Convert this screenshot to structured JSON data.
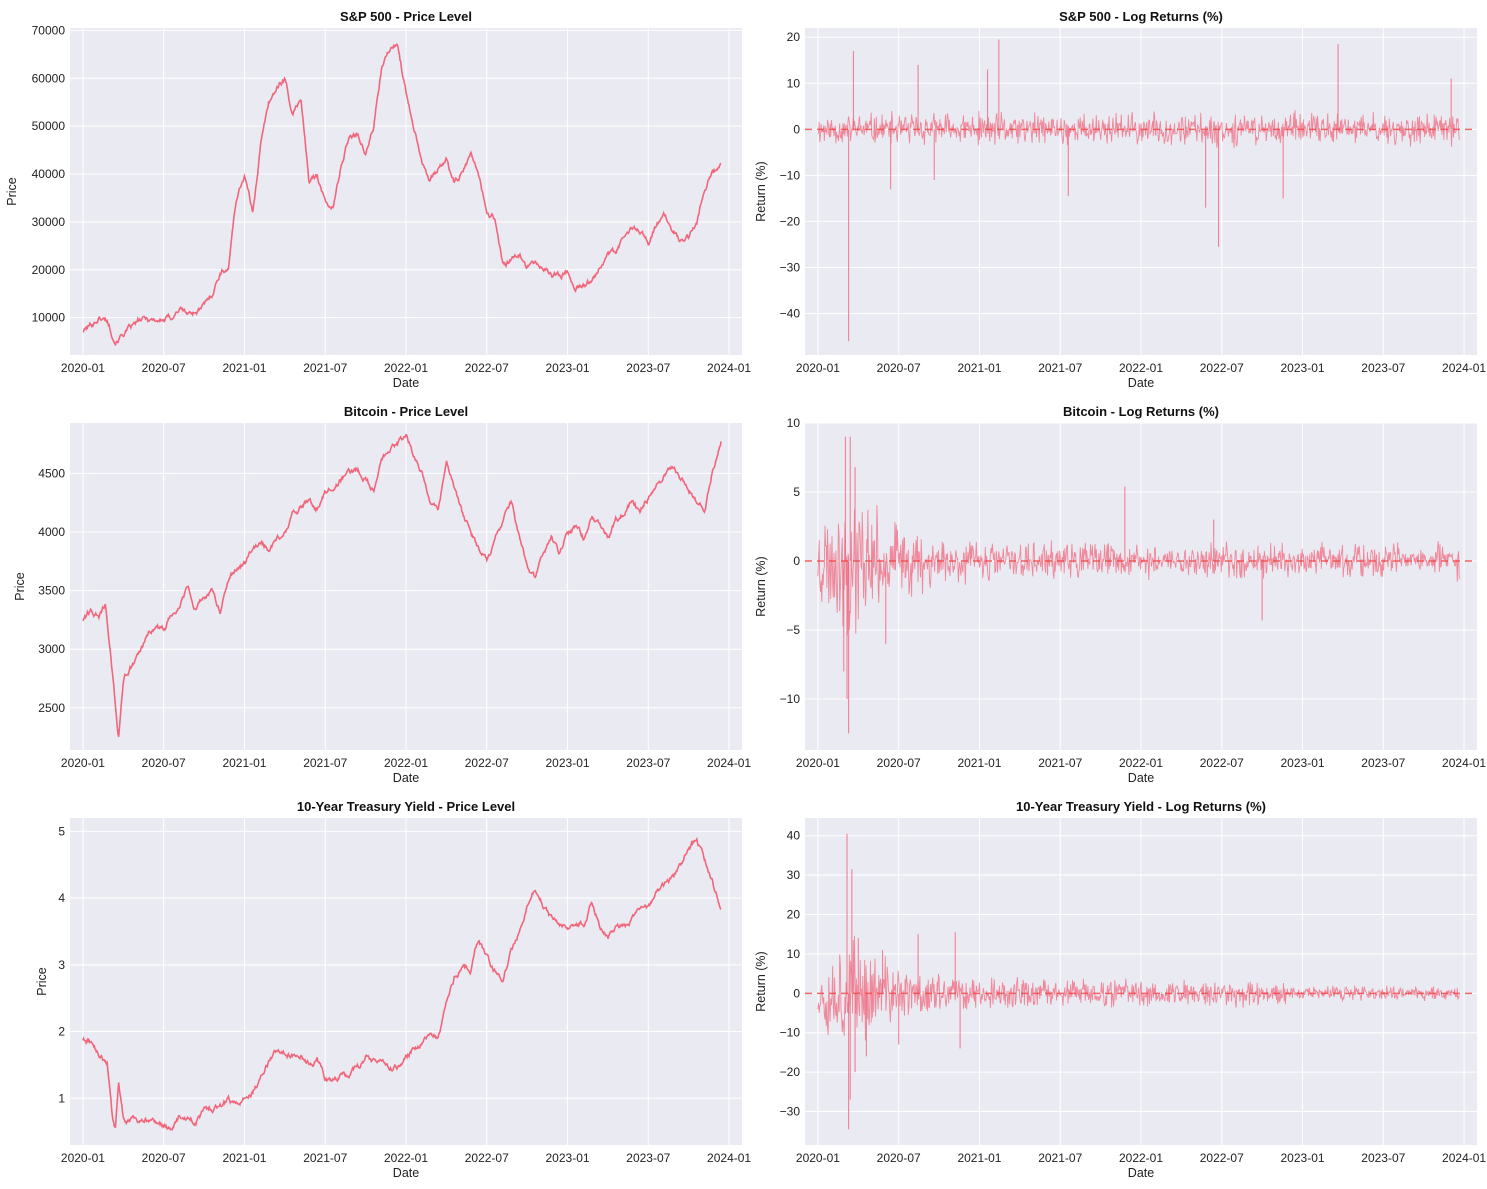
{
  "colors": {
    "line": "#f0677c",
    "zero_line": "#ef4444",
    "panel_bg": "#eaeaf2"
  },
  "chart_data": [
    {
      "id": "sp500-price",
      "type": "line",
      "title": "S&P 500 - Price Level",
      "xlabel": "Date",
      "ylabel": "Price",
      "xlim": [
        2019.92,
        2024.08
      ],
      "ylim": [
        2200,
        70500
      ],
      "yticks": [
        10000,
        20000,
        30000,
        40000,
        50000,
        60000,
        70000
      ],
      "ytick_labels": [
        "10000",
        "20000",
        "30000",
        "40000",
        "50000",
        "60000",
        "70000"
      ],
      "xticks": [
        2020.0,
        2020.5,
        2021.0,
        2021.5,
        2022.0,
        2022.5,
        2023.0,
        2023.5,
        2024.0
      ],
      "xtick_labels": [
        "2020-01",
        "2020-07",
        "2021-01",
        "2021-07",
        "2022-01",
        "2022-07",
        "2023-01",
        "2023-07",
        "2024-01"
      ],
      "series": [
        {
          "name": "S&P 500",
          "x": [
            2020.0,
            2020.05,
            2020.1,
            2020.15,
            2020.2,
            2020.25,
            2020.3,
            2020.35,
            2020.4,
            2020.45,
            2020.5,
            2020.55,
            2020.6,
            2020.65,
            2020.7,
            2020.75,
            2020.8,
            2020.85,
            2020.9,
            2020.95,
            2021.0,
            2021.05,
            2021.1,
            2021.15,
            2021.2,
            2021.25,
            2021.3,
            2021.35,
            2021.4,
            2021.45,
            2021.5,
            2021.55,
            2021.6,
            2021.65,
            2021.7,
            2021.75,
            2021.8,
            2021.85,
            2021.9,
            2021.95,
            2022.0,
            2022.05,
            2022.1,
            2022.15,
            2022.2,
            2022.25,
            2022.3,
            2022.35,
            2022.4,
            2022.45,
            2022.5,
            2022.55,
            2022.6,
            2022.65,
            2022.7,
            2022.75,
            2022.8,
            2022.85,
            2022.9,
            2022.95,
            2023.0,
            2023.05,
            2023.1,
            2023.15,
            2023.2,
            2023.25,
            2023.3,
            2023.35,
            2023.4,
            2023.45,
            2023.5,
            2023.55,
            2023.6,
            2023.65,
            2023.7,
            2023.75,
            2023.8,
            2023.85,
            2023.9,
            2023.95
          ],
          "y": [
            7200,
            8500,
            10000,
            9500,
            5300,
            6800,
            7800,
            9200,
            9700,
            9600,
            9500,
            10100,
            12000,
            10800,
            11300,
            12300,
            15000,
            19500,
            20500,
            35000,
            40000,
            32000,
            46000,
            55000,
            58000,
            60000,
            52000,
            56000,
            38000,
            40000,
            34000,
            33000,
            42000,
            48000,
            49000,
            44000,
            50000,
            62000,
            66000,
            67000,
            57000,
            50000,
            43000,
            39000,
            41000,
            43000,
            38000,
            40000,
            44000,
            40000,
            32000,
            31000,
            21000,
            21500,
            23000,
            21000,
            21000,
            20500,
            19000,
            18800,
            19500,
            16500,
            17000,
            17500,
            21000,
            24000,
            23000,
            27000,
            28500,
            28000,
            26000,
            29500,
            31000,
            28000,
            26000,
            27000,
            30000,
            37000,
            40000,
            42000
          ]
        }
      ]
    },
    {
      "id": "sp500-returns",
      "type": "line",
      "title": "S&P 500 - Log Returns (%)",
      "xlabel": "Date",
      "ylabel": "Return (%)",
      "xlim": [
        2019.92,
        2024.08
      ],
      "ylim": [
        -49,
        22
      ],
      "yticks": [
        -40,
        -30,
        -20,
        -10,
        0,
        10,
        20
      ],
      "ytick_labels": [
        "−40",
        "−30",
        "−20",
        "−10",
        "0",
        "10",
        "20"
      ],
      "xticks": [
        2020.0,
        2020.5,
        2021.0,
        2021.5,
        2022.0,
        2022.5,
        2023.0,
        2023.5,
        2024.0
      ],
      "xtick_labels": [
        "2020-01",
        "2020-07",
        "2021-01",
        "2021-07",
        "2022-01",
        "2022-07",
        "2023-01",
        "2023-07",
        "2024-01"
      ],
      "zero_line": 0,
      "noise": {
        "base": 3.0,
        "seed": 11
      },
      "spikes": [
        [
          2020.19,
          -46
        ],
        [
          2020.22,
          17
        ],
        [
          2020.45,
          -13
        ],
        [
          2020.62,
          14
        ],
        [
          2020.72,
          -11
        ],
        [
          2021.12,
          19.5
        ],
        [
          2021.05,
          13
        ],
        [
          2021.55,
          -14.5
        ],
        [
          2022.4,
          -17
        ],
        [
          2022.48,
          -25.5
        ],
        [
          2022.88,
          -15
        ],
        [
          2023.22,
          18.5
        ],
        [
          2023.92,
          11
        ]
      ]
    },
    {
      "id": "bitcoin-price",
      "type": "line",
      "title": "Bitcoin - Price Level",
      "xlabel": "Date",
      "ylabel": "Price",
      "xlim": [
        2019.92,
        2024.08
      ],
      "ylim": [
        2140,
        4930
      ],
      "yticks": [
        2500,
        3000,
        3500,
        4000,
        4500
      ],
      "ytick_labels": [
        "2500",
        "3000",
        "3500",
        "4000",
        "4500"
      ],
      "xticks": [
        2020.0,
        2020.5,
        2021.0,
        2021.5,
        2022.0,
        2022.5,
        2023.0,
        2023.5,
        2024.0
      ],
      "xtick_labels": [
        "2020-01",
        "2020-07",
        "2021-01",
        "2021-07",
        "2022-01",
        "2022-07",
        "2023-01",
        "2023-07",
        "2024-01"
      ],
      "series": [
        {
          "name": "Bitcoin",
          "x": [
            2020.0,
            2020.05,
            2020.1,
            2020.14,
            2020.17,
            2020.2,
            2020.22,
            2020.25,
            2020.3,
            2020.35,
            2020.4,
            2020.45,
            2020.5,
            2020.55,
            2020.6,
            2020.65,
            2020.7,
            2020.75,
            2020.8,
            2020.85,
            2020.9,
            2020.95,
            2021.0,
            2021.05,
            2021.1,
            2021.15,
            2021.2,
            2021.25,
            2021.3,
            2021.35,
            2021.4,
            2021.45,
            2021.5,
            2021.55,
            2021.6,
            2021.65,
            2021.7,
            2021.75,
            2021.8,
            2021.85,
            2021.9,
            2021.95,
            2022.0,
            2022.05,
            2022.1,
            2022.15,
            2022.2,
            2022.25,
            2022.3,
            2022.35,
            2022.4,
            2022.45,
            2022.5,
            2022.55,
            2022.6,
            2022.65,
            2022.7,
            2022.75,
            2022.8,
            2022.85,
            2022.9,
            2022.95,
            2023.0,
            2023.05,
            2023.1,
            2023.15,
            2023.2,
            2023.25,
            2023.3,
            2023.35,
            2023.4,
            2023.45,
            2023.5,
            2023.55,
            2023.6,
            2023.65,
            2023.7,
            2023.75,
            2023.8,
            2023.85,
            2023.9,
            2023.95
          ],
          "y": [
            3250,
            3320,
            3280,
            3380,
            2960,
            2550,
            2240,
            2750,
            2850,
            2950,
            3100,
            3200,
            3150,
            3300,
            3400,
            3550,
            3350,
            3450,
            3500,
            3300,
            3600,
            3700,
            3750,
            3850,
            3900,
            3850,
            3950,
            4000,
            4150,
            4200,
            4250,
            4200,
            4350,
            4400,
            4450,
            4500,
            4550,
            4450,
            4350,
            4600,
            4700,
            4750,
            4800,
            4650,
            4500,
            4300,
            4200,
            4600,
            4400,
            4150,
            4000,
            3850,
            3750,
            3900,
            4100,
            4250,
            3950,
            3700,
            3600,
            3850,
            3950,
            3800,
            4000,
            4050,
            3950,
            4150,
            4050,
            3950,
            4100,
            4150,
            4250,
            4200,
            4300,
            4400,
            4500,
            4550,
            4450,
            4400,
            4250,
            4200,
            4550,
            4780
          ]
        }
      ]
    },
    {
      "id": "bitcoin-returns",
      "type": "line",
      "title": "Bitcoin - Log Returns (%)",
      "xlabel": "Date",
      "ylabel": "Return (%)",
      "xlim": [
        2019.92,
        2024.08
      ],
      "ylim": [
        -13.7,
        10
      ],
      "yticks": [
        -10,
        -5,
        0,
        5,
        10
      ],
      "ytick_labels": [
        "−10",
        "−5",
        "0",
        "5",
        "10"
      ],
      "xticks": [
        2020.0,
        2020.5,
        2021.0,
        2021.5,
        2022.0,
        2022.5,
        2023.0,
        2023.5,
        2024.0
      ],
      "xtick_labels": [
        "2020-01",
        "2020-07",
        "2021-01",
        "2021-07",
        "2022-01",
        "2022-07",
        "2023-01",
        "2023-07",
        "2024-01"
      ],
      "zero_line": 0,
      "noise": {
        "base": 1.1,
        "seed": 23
      },
      "spikes": [
        [
          2020.17,
          9
        ],
        [
          2020.19,
          -12.5
        ],
        [
          2020.2,
          9
        ],
        [
          2020.18,
          -10
        ],
        [
          2020.16,
          -8
        ],
        [
          2020.23,
          6.8
        ],
        [
          2020.42,
          -6
        ],
        [
          2021.9,
          5.4
        ],
        [
          2022.45,
          3
        ],
        [
          2022.75,
          -4.3
        ]
      ]
    },
    {
      "id": "treasury-price",
      "type": "line",
      "title": "10-Year Treasury Yield - Price Level",
      "xlabel": "Date",
      "ylabel": "Price",
      "xlim": [
        2019.92,
        2024.08
      ],
      "ylim": [
        0.3,
        5.2
      ],
      "yticks": [
        1,
        2,
        3,
        4,
        5
      ],
      "ytick_labels": [
        "1",
        "2",
        "3",
        "4",
        "5"
      ],
      "xticks": [
        2020.0,
        2020.5,
        2021.0,
        2021.5,
        2022.0,
        2022.5,
        2023.0,
        2023.5,
        2024.0
      ],
      "xtick_labels": [
        "2020-01",
        "2020-07",
        "2021-01",
        "2021-07",
        "2022-01",
        "2022-07",
        "2023-01",
        "2023-07",
        "2024-01"
      ],
      "series": [
        {
          "name": "10-Year Treasury Yield",
          "x": [
            2020.0,
            2020.05,
            2020.1,
            2020.15,
            2020.18,
            2020.2,
            2020.22,
            2020.25,
            2020.3,
            2020.35,
            2020.4,
            2020.45,
            2020.5,
            2020.55,
            2020.6,
            2020.65,
            2020.7,
            2020.75,
            2020.8,
            2020.85,
            2020.9,
            2020.95,
            2021.0,
            2021.05,
            2021.1,
            2021.15,
            2021.2,
            2021.25,
            2021.3,
            2021.35,
            2021.4,
            2021.45,
            2021.5,
            2021.55,
            2021.6,
            2021.65,
            2021.7,
            2021.75,
            2021.8,
            2021.85,
            2021.9,
            2021.95,
            2022.0,
            2022.05,
            2022.1,
            2022.15,
            2022.2,
            2022.25,
            2022.3,
            2022.35,
            2022.4,
            2022.45,
            2022.5,
            2022.55,
            2022.6,
            2022.65,
            2022.7,
            2022.75,
            2022.8,
            2022.85,
            2022.9,
            2022.95,
            2023.0,
            2023.05,
            2023.1,
            2023.15,
            2023.2,
            2023.25,
            2023.3,
            2023.35,
            2023.4,
            2023.45,
            2023.5,
            2023.55,
            2023.6,
            2023.65,
            2023.7,
            2023.75,
            2023.8,
            2023.85,
            2023.9,
            2023.95
          ],
          "y": [
            1.88,
            1.85,
            1.65,
            1.55,
            0.75,
            0.53,
            1.25,
            0.7,
            0.68,
            0.65,
            0.7,
            0.62,
            0.6,
            0.55,
            0.7,
            0.72,
            0.68,
            0.78,
            0.85,
            0.9,
            0.95,
            0.92,
            1.0,
            1.1,
            1.3,
            1.55,
            1.7,
            1.65,
            1.62,
            1.6,
            1.5,
            1.55,
            1.3,
            1.25,
            1.35,
            1.35,
            1.45,
            1.6,
            1.55,
            1.58,
            1.48,
            1.45,
            1.6,
            1.75,
            1.85,
            1.95,
            1.9,
            2.4,
            2.8,
            3.0,
            2.95,
            3.4,
            3.1,
            2.9,
            2.8,
            3.2,
            3.5,
            3.9,
            4.15,
            3.9,
            3.7,
            3.6,
            3.55,
            3.65,
            3.6,
            3.95,
            3.6,
            3.4,
            3.6,
            3.6,
            3.7,
            3.8,
            3.85,
            4.05,
            4.2,
            4.3,
            4.5,
            4.8,
            4.85,
            4.55,
            4.2,
            3.85
          ]
        }
      ]
    },
    {
      "id": "treasury-returns",
      "type": "line",
      "title": "10-Year Treasury Yield - Log Returns (%)",
      "xlabel": "Date",
      "ylabel": "Return (%)",
      "xlim": [
        2019.92,
        2024.08
      ],
      "ylim": [
        -38.5,
        44.5
      ],
      "yticks": [
        -30,
        -20,
        -10,
        0,
        10,
        20,
        30,
        40
      ],
      "ytick_labels": [
        "−30",
        "−20",
        "−10",
        "0",
        "10",
        "20",
        "30",
        "40"
      ],
      "xticks": [
        2020.0,
        2020.5,
        2021.0,
        2021.5,
        2022.0,
        2022.5,
        2023.0,
        2023.5,
        2024.0
      ],
      "xtick_labels": [
        "2020-01",
        "2020-07",
        "2021-01",
        "2021-07",
        "2022-01",
        "2022-07",
        "2023-01",
        "2023-07",
        "2024-01"
      ],
      "zero_line": 0,
      "noise": {
        "base": 3.0,
        "seed": 37
      },
      "spikes": [
        [
          2020.18,
          40.5
        ],
        [
          2020.19,
          -34.5
        ],
        [
          2020.21,
          31.5
        ],
        [
          2020.2,
          -27
        ],
        [
          2020.23,
          -20
        ],
        [
          2020.25,
          14
        ],
        [
          2020.3,
          -16
        ],
        [
          2020.4,
          11
        ],
        [
          2020.5,
          -13
        ],
        [
          2020.62,
          15
        ],
        [
          2020.85,
          15.5
        ],
        [
          2020.88,
          -14
        ]
      ]
    }
  ]
}
